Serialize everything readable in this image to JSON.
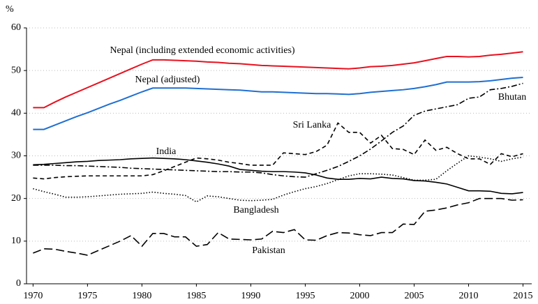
{
  "chart_data": {
    "type": "line",
    "y_label": "%",
    "x": [
      1970,
      1971,
      1972,
      1973,
      1974,
      1975,
      1976,
      1977,
      1978,
      1979,
      1980,
      1981,
      1982,
      1983,
      1984,
      1985,
      1986,
      1987,
      1988,
      1989,
      1990,
      1991,
      1992,
      1993,
      1994,
      1995,
      1996,
      1997,
      1998,
      1999,
      2000,
      2001,
      2002,
      2003,
      2004,
      2005,
      2006,
      2007,
      2008,
      2009,
      2010,
      2011,
      2012,
      2013,
      2014,
      2015
    ],
    "xlim": [
      1969.4,
      2015.8
    ],
    "xticks": [
      1970,
      1975,
      1980,
      1985,
      1990,
      1995,
      2000,
      2005,
      2010,
      2015
    ],
    "ylim": [
      0,
      60
    ],
    "yticks": [
      0,
      10,
      20,
      30,
      40,
      50,
      60
    ],
    "grid": true,
    "series": [
      {
        "name": "Nepal (including extended economic activities)",
        "color": "#e8111f",
        "line_style": "solid",
        "values": [
          41.3,
          41.3,
          42.6,
          43.8,
          44.9,
          46.0,
          47.1,
          48.2,
          49.3,
          50.4,
          51.5,
          52.5,
          52.5,
          52.4,
          52.3,
          52.2,
          52.0,
          51.9,
          51.7,
          51.6,
          51.4,
          51.2,
          51.1,
          51.0,
          50.9,
          50.8,
          50.7,
          50.6,
          50.5,
          50.4,
          50.6,
          50.9,
          51.0,
          51.2,
          51.5,
          51.8,
          52.3,
          52.8,
          53.3,
          53.3,
          53.2,
          53.3,
          53.6,
          53.8,
          54.1,
          54.4
        ]
      },
      {
        "name": "Nepal (adjusted)",
        "color": "#1f6fd1",
        "line_style": "solid",
        "values": [
          36.2,
          36.2,
          37.2,
          38.2,
          39.2,
          40.1,
          41.1,
          42.1,
          43.0,
          44.0,
          45.0,
          45.9,
          45.9,
          45.9,
          45.9,
          45.8,
          45.7,
          45.6,
          45.5,
          45.4,
          45.2,
          45.0,
          45.0,
          44.9,
          44.8,
          44.7,
          44.6,
          44.6,
          44.5,
          44.4,
          44.6,
          44.9,
          45.1,
          45.3,
          45.5,
          45.8,
          46.2,
          46.7,
          47.3,
          47.3,
          47.3,
          47.4,
          47.6,
          47.9,
          48.2,
          48.4
        ]
      },
      {
        "name": "Sri Lanka",
        "color": "#000000",
        "line_style": "dash",
        "values": [
          24.8,
          24.6,
          24.9,
          25.1,
          25.2,
          25.3,
          25.3,
          25.3,
          25.3,
          25.3,
          25.3,
          25.6,
          26.5,
          27.5,
          28.5,
          29.5,
          29.3,
          29.0,
          28.5,
          28.2,
          27.8,
          27.8,
          27.8,
          30.7,
          30.5,
          30.3,
          31.0,
          32.5,
          37.7,
          35.5,
          35.5,
          33.0,
          34.8,
          31.7,
          31.5,
          30.3,
          33.7,
          31.3,
          32.0,
          30.5,
          29.3,
          29.3,
          28.0,
          30.5,
          29.8,
          30.5
        ]
      },
      {
        "name": "India",
        "color": "#000000",
        "line_style": "solid",
        "values": [
          27.9,
          28.0,
          28.2,
          28.4,
          28.6,
          28.7,
          28.9,
          29.0,
          29.1,
          29.3,
          29.4,
          29.5,
          29.4,
          29.3,
          29.1,
          28.8,
          28.5,
          28.1,
          27.6,
          26.8,
          26.6,
          26.4,
          26.3,
          26.3,
          26.2,
          26.0,
          25.5,
          24.8,
          24.5,
          24.5,
          24.7,
          24.6,
          25.0,
          24.7,
          24.6,
          24.2,
          24.1,
          23.8,
          23.4,
          22.6,
          21.8,
          21.8,
          21.7,
          21.2,
          21.1,
          21.4
        ]
      },
      {
        "name": "Bhutan",
        "color": "#000000",
        "line_style": "dashdot",
        "values": [
          27.8,
          27.8,
          27.8,
          27.7,
          27.7,
          27.6,
          27.5,
          27.4,
          27.3,
          27.1,
          27.0,
          26.9,
          26.8,
          26.7,
          26.6,
          26.5,
          26.4,
          26.3,
          26.3,
          26.2,
          26.2,
          26.0,
          25.6,
          25.3,
          25.1,
          25.0,
          25.8,
          26.6,
          27.5,
          28.7,
          30.0,
          31.6,
          33.5,
          35.5,
          37.0,
          39.5,
          40.5,
          41.0,
          41.5,
          42.0,
          43.5,
          43.8,
          45.5,
          45.8,
          46.3,
          47.0
        ]
      },
      {
        "name": "Bangladesh",
        "color": "#000000",
        "line_style": "dot",
        "values": [
          22.3,
          21.6,
          21.0,
          20.3,
          20.3,
          20.4,
          20.6,
          20.8,
          21.0,
          21.1,
          21.2,
          21.5,
          21.2,
          21.0,
          20.7,
          19.2,
          20.6,
          20.4,
          20.0,
          19.6,
          19.5,
          19.6,
          19.8,
          20.8,
          21.6,
          22.3,
          22.8,
          23.5,
          24.4,
          25.3,
          25.8,
          25.8,
          25.7,
          25.5,
          24.9,
          24.3,
          24.3,
          24.5,
          26.5,
          28.3,
          30.0,
          29.7,
          29.3,
          28.7,
          29.3,
          29.7
        ]
      },
      {
        "name": "Pakistan",
        "color": "#000000",
        "line_style": "longdash",
        "values": [
          7.2,
          8.2,
          8.1,
          7.6,
          7.2,
          6.7,
          7.8,
          8.9,
          10.0,
          11.3,
          8.8,
          11.8,
          11.8,
          11.0,
          11.0,
          8.8,
          9.2,
          12.0,
          10.5,
          10.4,
          10.3,
          10.5,
          12.3,
          12.0,
          12.7,
          10.3,
          10.2,
          11.3,
          12.0,
          11.9,
          11.5,
          11.3,
          12.0,
          12.0,
          14.0,
          13.9,
          17.0,
          17.3,
          17.8,
          18.5,
          19.0,
          20.0,
          20.0,
          20.0,
          19.6,
          19.7
        ]
      }
    ]
  }
}
